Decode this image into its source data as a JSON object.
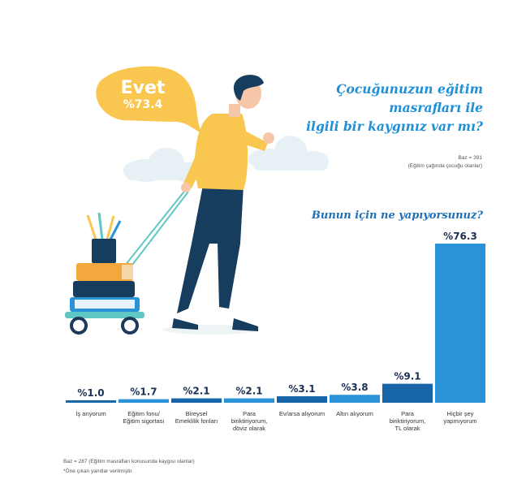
{
  "bubble": {
    "label": "Evet",
    "value": "%73.4"
  },
  "question": {
    "line1": "Çocuğunuzun eğitim masrafları ile",
    "line2": "ilgili bir kaygınız var mı?"
  },
  "base_top": {
    "line1": "Baz = 391",
    "line2": "(Eğitim çağında çocuğu olanlar)"
  },
  "question2": "Bunun için ne yapıyorsunuz?",
  "footer": {
    "line1": "Baz = 287 (Eğitim masrafları konusunda kaygısı olanlar)",
    "line2": "*Öne çıkan yanıtlar verilmiştir."
  },
  "colors": {
    "accent": "#1f8fd6",
    "dark_bar": "#1565a8",
    "light_bar": "#2a93d8",
    "bubble": "#f9c74f"
  },
  "chart_data": {
    "type": "bar",
    "categories": [
      [
        "İş arıyorum"
      ],
      [
        "Eğitim fonu/",
        "Eğitim sigortası"
      ],
      [
        "Bireysel",
        "Emeklilik fonları"
      ],
      [
        "Para",
        "biriktiriyorum,",
        "döviz olarak"
      ],
      [
        "Ev/arsa alıyorum"
      ],
      [
        "Altın alıyorum"
      ],
      [
        "Para",
        "biriktiriyorum,",
        "TL olarak"
      ],
      [
        "Hiçbir şey",
        "yapmıyorum"
      ]
    ],
    "values": [
      1.0,
      1.7,
      2.1,
      2.1,
      3.1,
      3.8,
      9.1,
      76.3
    ],
    "labels": [
      "%1.0",
      "%1.7",
      "%2.1",
      "%2.1",
      "%3.1",
      "%3.8",
      "%9.1",
      "%76.3"
    ],
    "bar_colors": [
      "#1565a8",
      "#2a93d8",
      "#1565a8",
      "#2a93d8",
      "#1565a8",
      "#2a93d8",
      "#1565a8",
      "#2a93d8"
    ],
    "ylim": [
      0,
      76.3
    ]
  }
}
